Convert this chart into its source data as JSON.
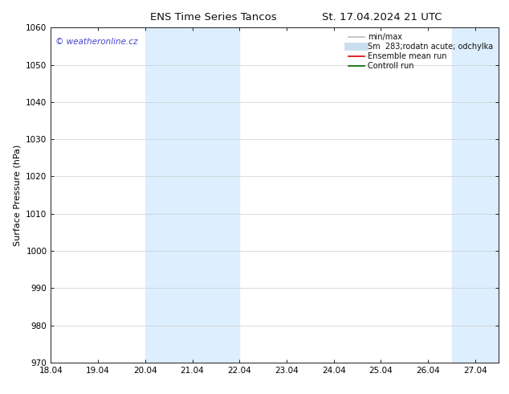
{
  "title": "ENS Time Series Tancos",
  "title_date": "St. 17.04.2024 21 UTC",
  "ylabel": "Surface Pressure (hPa)",
  "ylim": [
    970,
    1060
  ],
  "yticks": [
    970,
    980,
    990,
    1000,
    1010,
    1020,
    1030,
    1040,
    1050,
    1060
  ],
  "xtick_labels": [
    "18.04",
    "19.04",
    "20.04",
    "21.04",
    "22.04",
    "23.04",
    "24.04",
    "25.04",
    "26.04",
    "27.04"
  ],
  "xtick_positions": [
    0,
    1,
    2,
    3,
    4,
    5,
    6,
    7,
    8,
    9
  ],
  "xlim": [
    0,
    9.5
  ],
  "shaded_bands": [
    {
      "x_start": 2,
      "x_end": 4,
      "color": "#ddeeff"
    },
    {
      "x_start": 8.5,
      "x_end": 9.5,
      "color": "#ddeeff"
    }
  ],
  "watermark_text": "© weatheronline.cz",
  "watermark_color": "#4444cc",
  "legend_entries": [
    {
      "label": "min/max",
      "color": "#bbbbbb",
      "lw": 1.2,
      "linestyle": "-"
    },
    {
      "label": "Sm  283;rodatn acute; odchylka",
      "color": "#c8dff0",
      "lw": 7,
      "linestyle": "-"
    },
    {
      "label": "Ensemble mean run",
      "color": "#dd0000",
      "lw": 1.2,
      "linestyle": "-"
    },
    {
      "label": "Controll run",
      "color": "#006600",
      "lw": 1.2,
      "linestyle": "-"
    }
  ],
  "background_color": "#ffffff",
  "title_fontsize": 9.5,
  "axis_label_fontsize": 8,
  "tick_fontsize": 7.5,
  "watermark_fontsize": 7.5,
  "legend_fontsize": 7
}
